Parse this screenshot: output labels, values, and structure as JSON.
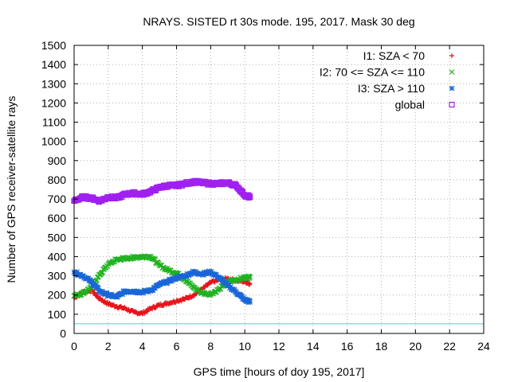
{
  "chart_data": {
    "type": "scatter",
    "title": "NRAYS. SISTED rt 30s mode. 195, 2017. Mask 30 deg",
    "xlabel": "GPS time [hours of doy 195, 2017]",
    "ylabel": "Number of GPS receiver-satellite rays",
    "xlim": [
      0,
      24
    ],
    "ylim": [
      0,
      1500
    ],
    "x_ticks": [
      "0",
      "2",
      "4",
      "6",
      "8",
      "10",
      "12",
      "14",
      "16",
      "18",
      "20",
      "22",
      "24"
    ],
    "y_ticks": [
      "0",
      "100",
      "200",
      "300",
      "400",
      "500",
      "600",
      "700",
      "800",
      "900",
      "1000",
      "1100",
      "1200",
      "1300",
      "1400",
      "1500"
    ],
    "grid": true,
    "legend_position": "top-right",
    "threshold_line": {
      "y": 50,
      "color": "#5fc9c9"
    },
    "series": [
      {
        "name": "I1: SZA < 70",
        "marker": "+",
        "marker_symbol": "+",
        "color": "#e8141c",
        "points": [
          [
            0.0,
            185
          ],
          [
            0.5,
            215
          ],
          [
            1.0,
            225
          ],
          [
            1.5,
            180
          ],
          [
            2.0,
            155
          ],
          [
            2.5,
            140
          ],
          [
            3.0,
            130
          ],
          [
            3.5,
            110
          ],
          [
            4.0,
            105
          ],
          [
            4.5,
            130
          ],
          [
            5.0,
            148
          ],
          [
            5.5,
            158
          ],
          [
            6.0,
            170
          ],
          [
            6.5,
            180
          ],
          [
            7.0,
            200
          ],
          [
            7.5,
            230
          ],
          [
            8.0,
            265
          ],
          [
            8.5,
            280
          ],
          [
            9.0,
            285
          ],
          [
            9.5,
            275
          ],
          [
            10.0,
            270
          ],
          [
            10.3,
            260
          ]
        ]
      },
      {
        "name": "I2: 70 <= SZA <= 110",
        "marker": "x",
        "marker_symbol": "×",
        "color": "#1fb21f",
        "points": [
          [
            0.0,
            195
          ],
          [
            0.5,
            210
          ],
          [
            1.0,
            240
          ],
          [
            1.5,
            305
          ],
          [
            2.0,
            360
          ],
          [
            2.5,
            385
          ],
          [
            3.0,
            390
          ],
          [
            3.5,
            395
          ],
          [
            4.0,
            400
          ],
          [
            4.5,
            400
          ],
          [
            5.0,
            355
          ],
          [
            5.5,
            330
          ],
          [
            6.0,
            315
          ],
          [
            6.5,
            280
          ],
          [
            7.0,
            240
          ],
          [
            7.5,
            210
          ],
          [
            8.0,
            205
          ],
          [
            8.5,
            230
          ],
          [
            9.0,
            270
          ],
          [
            9.5,
            280
          ],
          [
            10.0,
            290
          ],
          [
            10.3,
            295
          ]
        ]
      },
      {
        "name": "I3: SZA > 110",
        "marker": "*",
        "marker_symbol": "*",
        "color": "#1a66d8",
        "points": [
          [
            0.0,
            320
          ],
          [
            0.5,
            300
          ],
          [
            1.0,
            270
          ],
          [
            1.5,
            220
          ],
          [
            2.0,
            200
          ],
          [
            2.5,
            190
          ],
          [
            3.0,
            220
          ],
          [
            3.5,
            220
          ],
          [
            4.0,
            215
          ],
          [
            4.5,
            225
          ],
          [
            5.0,
            255
          ],
          [
            5.5,
            270
          ],
          [
            6.0,
            290
          ],
          [
            6.5,
            300
          ],
          [
            7.0,
            320
          ],
          [
            7.5,
            310
          ],
          [
            8.0,
            320
          ],
          [
            8.5,
            290
          ],
          [
            9.0,
            250
          ],
          [
            9.5,
            215
          ],
          [
            10.0,
            175
          ],
          [
            10.3,
            165
          ]
        ]
      },
      {
        "name": "global",
        "marker": "square",
        "marker_symbol": "□",
        "color": "#a020f0",
        "points": [
          [
            0.0,
            690
          ],
          [
            0.5,
            710
          ],
          [
            1.0,
            705
          ],
          [
            1.5,
            690
          ],
          [
            2.0,
            710
          ],
          [
            2.5,
            705
          ],
          [
            3.0,
            725
          ],
          [
            3.5,
            730
          ],
          [
            4.0,
            725
          ],
          [
            4.5,
            740
          ],
          [
            5.0,
            760
          ],
          [
            5.5,
            770
          ],
          [
            6.0,
            770
          ],
          [
            6.5,
            780
          ],
          [
            7.0,
            790
          ],
          [
            7.5,
            785
          ],
          [
            8.0,
            780
          ],
          [
            8.5,
            780
          ],
          [
            9.0,
            785
          ],
          [
            9.5,
            770
          ],
          [
            10.0,
            720
          ],
          [
            10.3,
            710
          ]
        ]
      }
    ]
  }
}
